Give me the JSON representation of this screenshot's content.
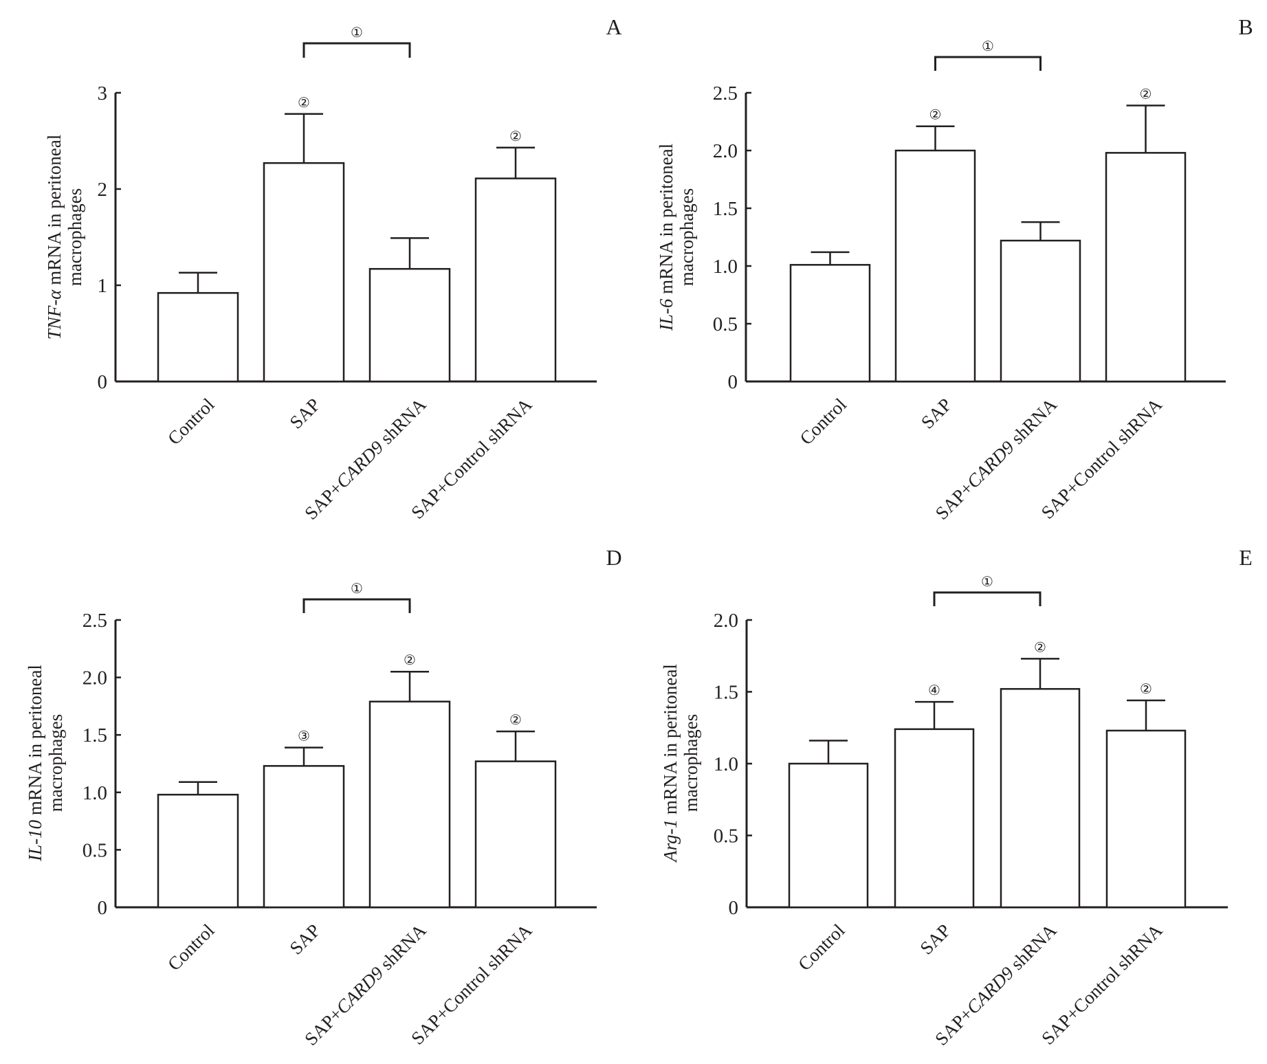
{
  "chart_data": [
    {
      "type": "bar",
      "panel": "A",
      "ylabel_italic": "TNF-α",
      "ylabel_rest": " mRNA in peritoneal",
      "ylabel_line2": "macrophages",
      "categories": [
        "Control",
        "SAP",
        "SAP+CARD9 shRNA",
        "SAP+Control shRNA"
      ],
      "values": [
        0.92,
        2.27,
        1.17,
        2.11
      ],
      "error_upper": [
        1.13,
        2.78,
        1.49,
        2.43
      ],
      "annotations": [
        "",
        "②",
        "",
        "②"
      ],
      "bracket": {
        "from": 1,
        "to": 2,
        "label": "①"
      },
      "ylim": [
        0,
        3
      ],
      "yticks": [
        0,
        1,
        2,
        3
      ],
      "ytick_labels": [
        "0",
        "1",
        "2",
        "3"
      ]
    },
    {
      "type": "bar",
      "panel": "B",
      "ylabel_italic": "IL-6",
      "ylabel_rest": " mRNA in peritoneal",
      "ylabel_line2": "macrophages",
      "categories": [
        "Control",
        "SAP",
        "SAP+CARD9 shRNA",
        "SAP+Control shRNA"
      ],
      "values": [
        1.01,
        2.0,
        1.22,
        1.98
      ],
      "error_upper": [
        1.12,
        2.21,
        1.38,
        2.39
      ],
      "annotations": [
        "",
        "②",
        "",
        "②"
      ],
      "bracket": {
        "from": 1,
        "to": 2,
        "label": "①"
      },
      "ylim": [
        0,
        2.5
      ],
      "yticks": [
        0,
        0.5,
        1.0,
        1.5,
        2.0,
        2.5
      ],
      "ytick_labels": [
        "0",
        "0.5",
        "1.0",
        "1.5",
        "2.0",
        "2.5"
      ]
    },
    {
      "type": "bar",
      "panel": "D",
      "ylabel_italic": "IL-10",
      "ylabel_rest": " mRNA in peritoneal",
      "ylabel_line2": "macrophages",
      "categories": [
        "Control",
        "SAP",
        "SAP+CARD9 shRNA",
        "SAP+Control shRNA"
      ],
      "values": [
        0.98,
        1.23,
        1.79,
        1.27
      ],
      "error_upper": [
        1.09,
        1.39,
        2.05,
        1.53
      ],
      "annotations": [
        "",
        "③",
        "②",
        "②"
      ],
      "bracket": {
        "from": 1,
        "to": 2,
        "label": "①"
      },
      "ylim": [
        0,
        2.5
      ],
      "yticks": [
        0,
        0.5,
        1.0,
        1.5,
        2.0,
        2.5
      ],
      "ytick_labels": [
        "0",
        "0.5",
        "1.0",
        "1.5",
        "2.0",
        "2.5"
      ]
    },
    {
      "type": "bar",
      "panel": "E",
      "ylabel_italic": "Arg-1",
      "ylabel_rest": " mRNA in peritoneal",
      "ylabel_line2": "macrophages",
      "categories": [
        "Control",
        "SAP",
        "SAP+CARD9 shRNA",
        "SAP+Control shRNA"
      ],
      "values": [
        1.0,
        1.24,
        1.52,
        1.23
      ],
      "error_upper": [
        1.16,
        1.43,
        1.73,
        1.44
      ],
      "annotations": [
        "",
        "④",
        "②",
        "②"
      ],
      "bracket": {
        "from": 1,
        "to": 2,
        "label": "①"
      },
      "ylim": [
        0,
        2.0
      ],
      "yticks": [
        0,
        0.5,
        1.0,
        1.5,
        2.0
      ],
      "ytick_labels": [
        "0",
        "0.5",
        "1.0",
        "1.5",
        "2.0"
      ]
    }
  ],
  "category_label_parts": [
    [
      {
        "t": "Control",
        "i": false
      }
    ],
    [
      {
        "t": "SAP",
        "i": false
      }
    ],
    [
      {
        "t": "SAP+",
        "i": false
      },
      {
        "t": "CARD9",
        "i": true
      },
      {
        "t": " shRNA",
        "i": false
      }
    ],
    [
      {
        "t": "SAP+Control shRNA",
        "i": false
      }
    ]
  ],
  "colors": {
    "ink": "#231f20",
    "bar_fill": "#ffffff",
    "background": "#ffffff"
  }
}
